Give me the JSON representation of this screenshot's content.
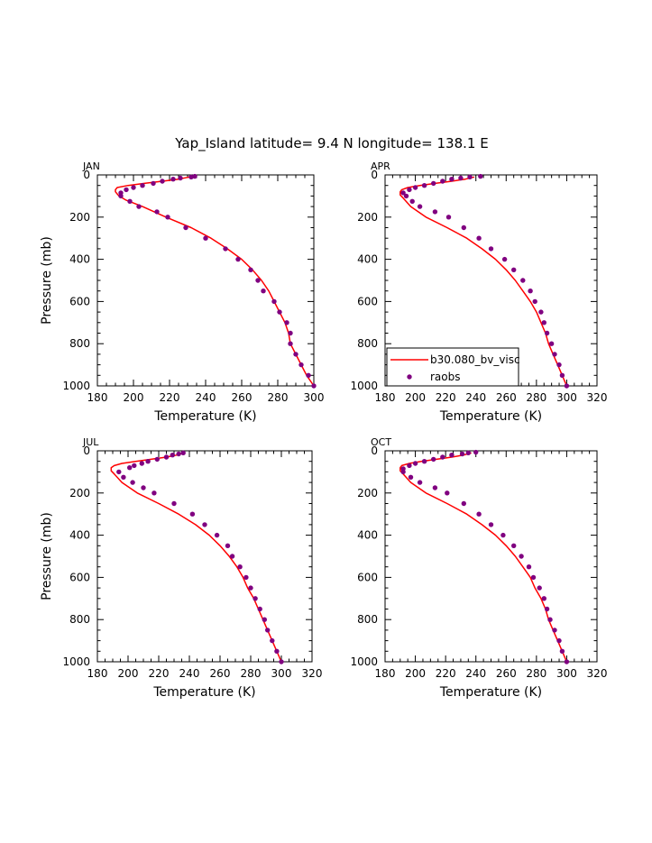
{
  "figure": {
    "title": "Yap_Island  latitude= 9.4 N longitude= 138.1 E"
  },
  "legend": {
    "items": [
      {
        "label": "b30.080_bv_visc",
        "color": "#ff0000",
        "kind": "line"
      },
      {
        "label": "raobs",
        "color": "#800080",
        "kind": "marker"
      }
    ],
    "panel": "APR",
    "placement": "bottom-left"
  },
  "colors": {
    "model": "#ff0000",
    "obs": "#800080",
    "axis": "#000000"
  },
  "chart_data": [
    {
      "type": "line",
      "panel_label": "JAN",
      "xlabel": "Temperature (K)",
      "ylabel": "Pressure (mb)",
      "xlim": [
        180,
        300
      ],
      "ylim": [
        1000,
        0
      ],
      "xticks": [
        "180",
        "200",
        "220",
        "240",
        "260",
        "280",
        "300"
      ],
      "yticks": [
        "0",
        "200",
        "400",
        "600",
        "800",
        "1000"
      ],
      "series": [
        {
          "name": "b30.080_bv_visc",
          "x": [
            300,
            296,
            293,
            290,
            287,
            286,
            284,
            281,
            278,
            275,
            271,
            266,
            260,
            252,
            243,
            232,
            218,
            205,
            196,
            192,
            191,
            190,
            190,
            191,
            197,
            206,
            216,
            225,
            231
          ],
          "y": [
            1000,
            950,
            900,
            850,
            800,
            750,
            700,
            650,
            600,
            550,
            500,
            450,
            400,
            350,
            300,
            250,
            200,
            150,
            120,
            100,
            90,
            80,
            70,
            60,
            50,
            40,
            30,
            20,
            10
          ]
        },
        {
          "name": "raobs",
          "x": [
            300,
            297,
            293,
            290,
            287,
            287,
            285,
            281,
            278,
            272,
            269,
            265,
            258,
            251,
            240,
            229,
            219,
            213,
            203,
            198,
            193,
            193,
            196,
            200,
            205,
            211,
            216,
            222,
            226,
            232,
            234
          ],
          "y": [
            1000,
            950,
            900,
            850,
            800,
            750,
            700,
            650,
            600,
            550,
            500,
            450,
            400,
            350,
            300,
            250,
            200,
            175,
            150,
            125,
            100,
            85,
            70,
            60,
            50,
            40,
            30,
            20,
            15,
            10,
            7
          ]
        }
      ]
    },
    {
      "type": "line",
      "panel_label": "APR",
      "xlabel": "Temperature (K)",
      "ylabel": "",
      "xlim": [
        180,
        320
      ],
      "ylim": [
        1000,
        0
      ],
      "xticks": [
        "180",
        "200",
        "220",
        "240",
        "260",
        "280",
        "300",
        "320"
      ],
      "yticks": [
        "0",
        "200",
        "400",
        "600",
        "800",
        "1000"
      ],
      "series": [
        {
          "name": "b30.080_bv_visc",
          "x": [
            300,
            297,
            294,
            291,
            288,
            286,
            283,
            280,
            276,
            271,
            266,
            260,
            253,
            244,
            234,
            221,
            207,
            197,
            192,
            190,
            190,
            191,
            195,
            203,
            213,
            224,
            233,
            239
          ],
          "y": [
            1000,
            950,
            900,
            850,
            800,
            750,
            700,
            650,
            600,
            550,
            500,
            450,
            400,
            350,
            300,
            250,
            200,
            150,
            110,
            95,
            80,
            70,
            60,
            50,
            40,
            30,
            20,
            10
          ]
        },
        {
          "name": "raobs",
          "x": [
            300,
            297,
            295,
            292,
            290,
            287,
            285,
            283,
            279,
            276,
            271,
            265,
            259,
            250,
            242,
            232,
            222,
            213,
            203,
            198,
            194,
            192,
            196,
            200,
            206,
            212,
            218,
            224,
            230,
            236,
            243
          ],
          "y": [
            1000,
            950,
            900,
            850,
            800,
            750,
            700,
            650,
            600,
            550,
            500,
            450,
            400,
            350,
            300,
            250,
            200,
            175,
            150,
            125,
            100,
            85,
            70,
            60,
            50,
            40,
            30,
            20,
            15,
            10,
            7
          ]
        }
      ]
    },
    {
      "type": "line",
      "panel_label": "JUL",
      "xlabel": "Temperature (K)",
      "ylabel": "Pressure (mb)",
      "xlim": [
        180,
        320
      ],
      "ylim": [
        1000,
        0
      ],
      "xticks": [
        "180",
        "200",
        "220",
        "240",
        "260",
        "280",
        "300",
        "320"
      ],
      "yticks": [
        "0",
        "200",
        "400",
        "600",
        "800",
        "1000"
      ],
      "series": [
        {
          "name": "b30.080_bv_visc",
          "x": [
            300,
            297,
            294,
            291,
            288,
            285,
            282,
            278,
            275,
            271,
            266,
            260,
            253,
            244,
            233,
            220,
            206,
            196,
            191,
            189,
            189,
            191,
            196,
            205,
            215,
            225,
            232,
            236
          ],
          "y": [
            1000,
            950,
            900,
            850,
            800,
            750,
            700,
            650,
            600,
            550,
            500,
            450,
            400,
            350,
            300,
            250,
            200,
            150,
            110,
            95,
            80,
            70,
            60,
            50,
            40,
            30,
            20,
            10
          ]
        },
        {
          "name": "raobs",
          "x": [
            300,
            297,
            294,
            291,
            289,
            286,
            283,
            280,
            277,
            273,
            268,
            265,
            258,
            250,
            242,
            230,
            217,
            210,
            203,
            197,
            194,
            201,
            204,
            209,
            213,
            219,
            225,
            229,
            233,
            236
          ],
          "y": [
            1000,
            950,
            900,
            850,
            800,
            750,
            700,
            650,
            600,
            550,
            500,
            450,
            400,
            350,
            300,
            250,
            200,
            175,
            150,
            125,
            100,
            80,
            70,
            60,
            50,
            40,
            30,
            20,
            15,
            10
          ]
        }
      ]
    },
    {
      "type": "line",
      "panel_label": "OCT",
      "xlabel": "Temperature (K)",
      "ylabel": "",
      "xlim": [
        180,
        320
      ],
      "ylim": [
        1000,
        0
      ],
      "xticks": [
        "180",
        "200",
        "220",
        "240",
        "260",
        "280",
        "300",
        "320"
      ],
      "yticks": [
        "0",
        "200",
        "400",
        "600",
        "800",
        "1000"
      ],
      "series": [
        {
          "name": "b30.080_bv_visc",
          "x": [
            300,
            297,
            294,
            291,
            288,
            286,
            283,
            279,
            276,
            271,
            266,
            260,
            253,
            244,
            234,
            221,
            207,
            197,
            192,
            190,
            190,
            191,
            196,
            204,
            214,
            224,
            232,
            237
          ],
          "y": [
            1000,
            950,
            900,
            850,
            800,
            750,
            700,
            650,
            600,
            550,
            500,
            450,
            400,
            350,
            300,
            250,
            200,
            150,
            110,
            95,
            80,
            70,
            60,
            50,
            40,
            30,
            20,
            10
          ]
        },
        {
          "name": "raobs",
          "x": [
            300,
            297,
            295,
            292,
            289,
            287,
            285,
            282,
            278,
            275,
            270,
            265,
            258,
            250,
            242,
            232,
            221,
            213,
            203,
            197,
            192,
            192,
            196,
            200,
            206,
            212,
            218,
            224,
            231,
            235,
            240
          ],
          "y": [
            1000,
            950,
            900,
            850,
            800,
            750,
            700,
            650,
            600,
            550,
            500,
            450,
            400,
            350,
            300,
            250,
            200,
            175,
            150,
            125,
            100,
            85,
            70,
            60,
            50,
            40,
            30,
            20,
            15,
            10,
            7
          ]
        }
      ]
    }
  ]
}
